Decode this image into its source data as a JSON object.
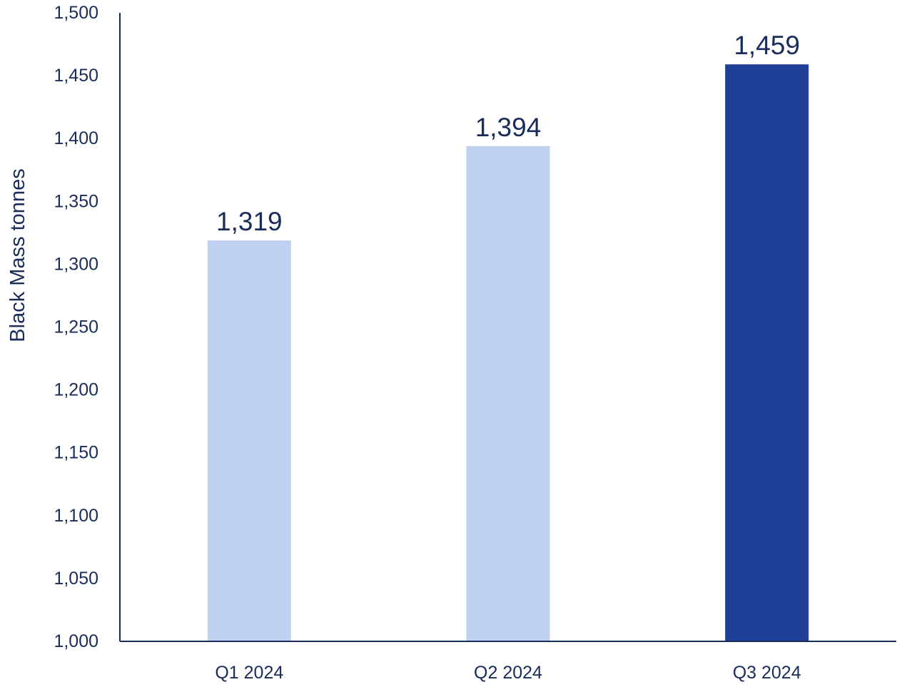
{
  "chart_data": {
    "type": "bar",
    "title": "",
    "xlabel": "",
    "ylabel": "Black Mass tonnes",
    "categories": [
      "Q1 2024",
      "Q2 2024",
      "Q3 2024"
    ],
    "values": [
      1319,
      1394,
      1459
    ],
    "data_labels": [
      "1,319",
      "1,394",
      "1,459"
    ],
    "ylim": [
      1000,
      1500
    ],
    "yticks": [
      1000,
      1050,
      1100,
      1150,
      1200,
      1250,
      1300,
      1350,
      1400,
      1450,
      1500
    ],
    "ytick_labels": [
      "1,000",
      "1,050",
      "1,100",
      "1,150",
      "1,200",
      "1,250",
      "1,300",
      "1,350",
      "1,400",
      "1,450",
      "1,500"
    ],
    "grid": false,
    "legend": "none",
    "bar_colors": [
      "#bfd1f2",
      "#bfd1f2",
      "#1f4096"
    ],
    "text_color": "#1a2d5a",
    "axis_color": "#1a2d5a"
  }
}
